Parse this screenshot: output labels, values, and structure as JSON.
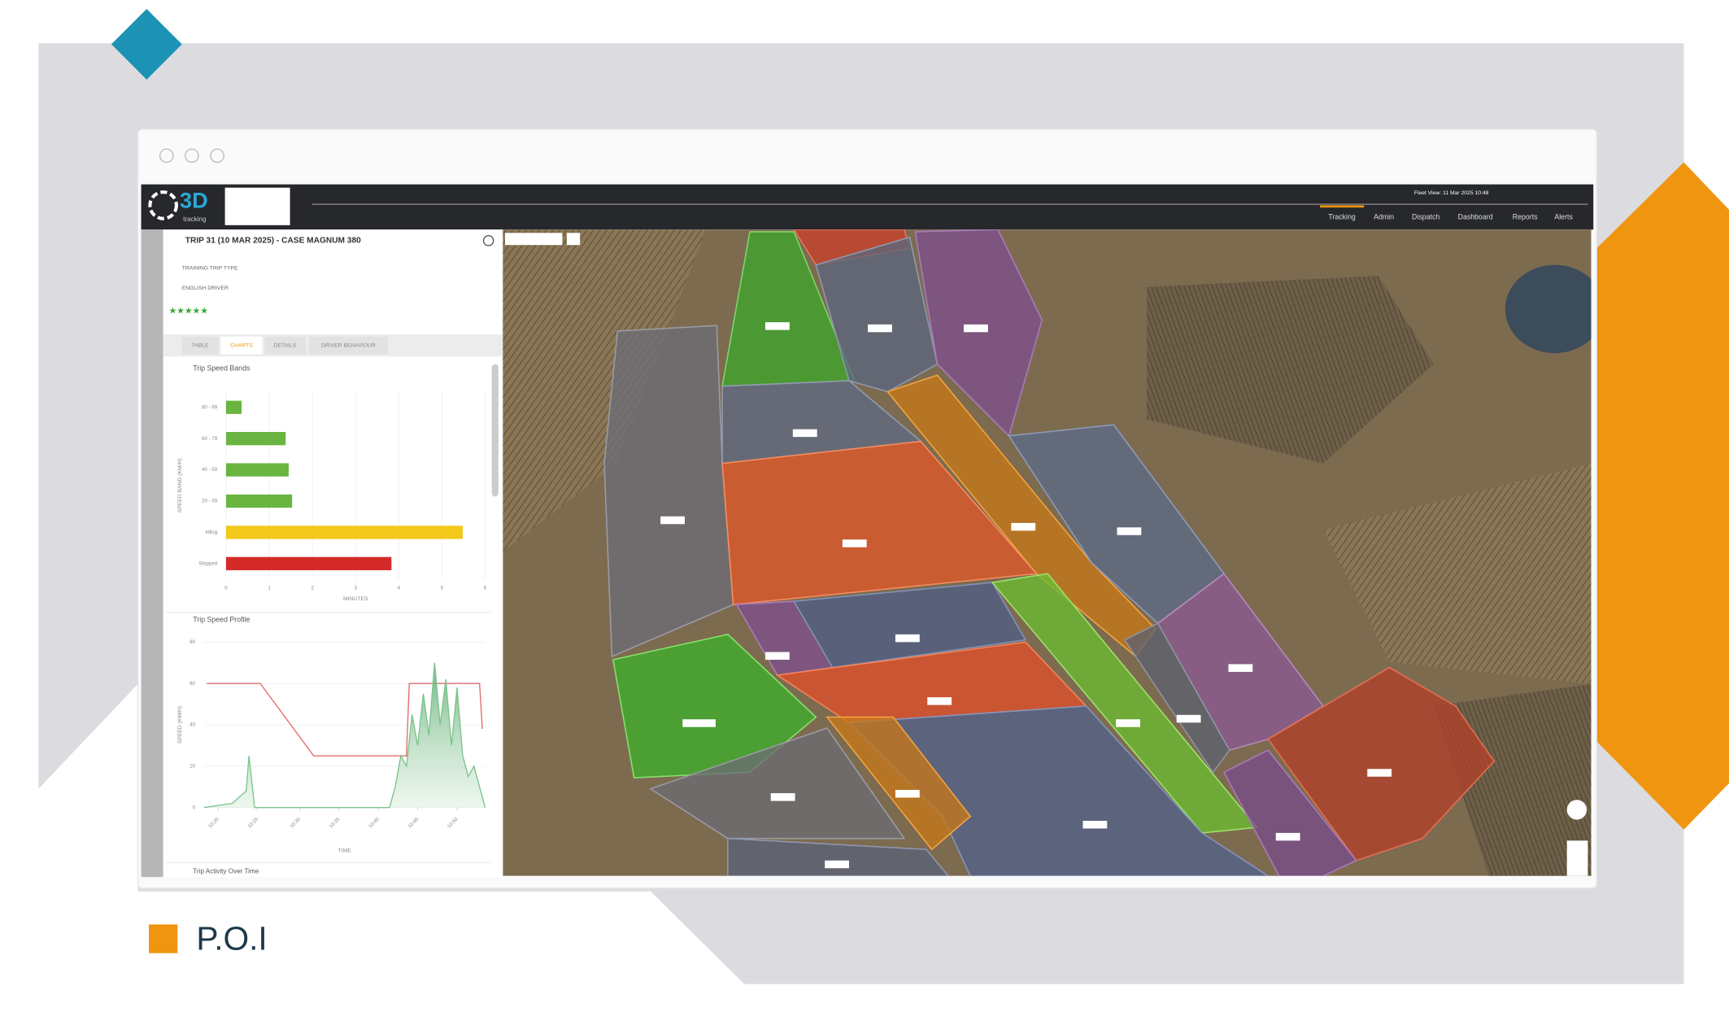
{
  "legend_label": "P.O.I",
  "app": {
    "logo": "3D",
    "logo_sub": "tracking",
    "header_info": "Fleet View: 11 Mar 2025 10:48",
    "nav": [
      "Tracking",
      "Admin",
      "Dispatch",
      "Dashboard",
      "Reports",
      "Alerts"
    ]
  },
  "sidebar": {
    "trip_title": "TRIP 31 (10 MAR 2025) - CASE MAGNUM 380",
    "details": [
      "TRAINING TRIP TYPE",
      "ENGLISH DRIVER"
    ],
    "tabs": [
      "TABLE",
      "CHARTS",
      "DETAILS",
      "DRIVER BEHAVIOUR"
    ],
    "next_chart_title": "Trip Activity Over Time"
  },
  "chart_data": [
    {
      "type": "bar",
      "title": "Trip Speed Bands",
      "categories": [
        "80 - 99",
        "60 - 79",
        "40 - 59",
        "20 - 39",
        "Idling",
        "Stopped"
      ],
      "values": [
        0.36,
        1.38,
        1.45,
        1.53,
        5.48,
        3.83
      ],
      "colors": [
        "#6ab441",
        "#6ab441",
        "#6ab441",
        "#6ab441",
        "#f2c81b",
        "#d42a2a"
      ],
      "xlim": [
        0,
        6
      ],
      "xticks": [
        0,
        1,
        2,
        3,
        4,
        5,
        6
      ],
      "xlabel": "MINUTES",
      "ylabel": "SPEED BAND (KM/H)",
      "grid": true
    },
    {
      "type": "line",
      "title": "Trip Speed Profile",
      "xlabel": "TIME",
      "ylabel": "SPEED (KM/H)",
      "xlim": [
        0,
        100
      ],
      "ylim": [
        0,
        80
      ],
      "yticks": [
        0,
        20,
        40,
        60,
        80
      ],
      "xticks": [
        {
          "value": 5,
          "label": "10:20"
        },
        {
          "value": 19,
          "label": "10:25"
        },
        {
          "value": 34,
          "label": "10:30"
        },
        {
          "value": 48,
          "label": "10:35"
        },
        {
          "value": 62,
          "label": "10:40"
        },
        {
          "value": 76,
          "label": "10:45"
        },
        {
          "value": 90,
          "label": "10:50"
        }
      ],
      "series": [
        {
          "color": "#e26b6b",
          "x": [
            1,
            20,
            39,
            72,
            73,
            98,
            99
          ],
          "values": [
            60,
            60,
            25,
            25,
            60,
            60,
            38
          ]
        },
        {
          "color": "#7cc48a",
          "area": true,
          "x": [
            0,
            10,
            15,
            16,
            18,
            66,
            68,
            70,
            72,
            74,
            76,
            78,
            80,
            82,
            84,
            86,
            88,
            90,
            92,
            94,
            96,
            98,
            100
          ],
          "values": [
            0,
            2,
            8,
            25,
            0,
            0,
            10,
            25,
            20,
            45,
            30,
            55,
            35,
            70,
            40,
            62,
            30,
            58,
            25,
            15,
            20,
            10,
            0
          ]
        }
      ]
    }
  ]
}
